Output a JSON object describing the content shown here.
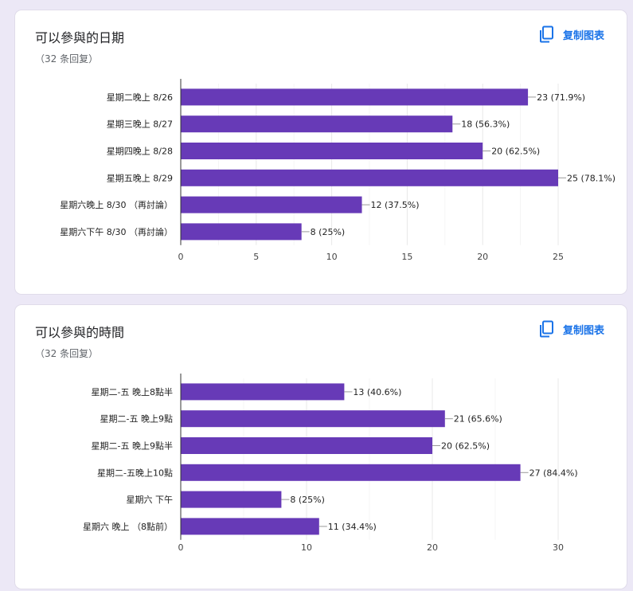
{
  "cards": [
    {
      "title": "可以參與的日期",
      "subtitle": "（32 条回复）",
      "copy_label": "复制图表",
      "copy_icon": "copy-icon"
    },
    {
      "title": "可以參與的時間",
      "subtitle": "（32 条回复）",
      "copy_label": "复制图表",
      "copy_icon": "copy-icon"
    }
  ],
  "chart_data": [
    {
      "type": "bar",
      "orientation": "horizontal",
      "categories": [
        "星期二晚上 8/26",
        "星期三晚上 8/27",
        "星期四晚上 8/28",
        "星期五晚上 8/29",
        "星期六晚上 8/30 （再討論）",
        "星期六下午 8/30 （再討論）"
      ],
      "values": [
        23,
        18,
        20,
        25,
        12,
        8
      ],
      "data_labels": [
        "23 (71.9%)",
        "18 (56.3%)",
        "20 (62.5%)",
        "25 (78.1%)",
        "12 (37.5%)",
        "8 (25%)"
      ],
      "xticks": [
        0,
        5,
        10,
        15,
        20,
        25
      ],
      "xlim": [
        0,
        25
      ],
      "grid": true,
      "bar_color": "#673ab7"
    },
    {
      "type": "bar",
      "orientation": "horizontal",
      "categories": [
        "星期二-五 晚上8點半",
        "星期二-五 晚上9點",
        "星期二-五 晚上9點半",
        "星期二-五晚上10點",
        "星期六 下午",
        "星期六 晚上 （8點前）"
      ],
      "values": [
        13,
        21,
        20,
        27,
        8,
        11
      ],
      "data_labels": [
        "13 (40.6%)",
        "21 (65.6%)",
        "20 (62.5%)",
        "27 (84.4%)",
        "8 (25%)",
        "11 (34.4%)"
      ],
      "xticks": [
        0,
        10,
        20,
        30
      ],
      "xlim": [
        0,
        30
      ],
      "grid": true,
      "bar_color": "#673ab7"
    }
  ]
}
